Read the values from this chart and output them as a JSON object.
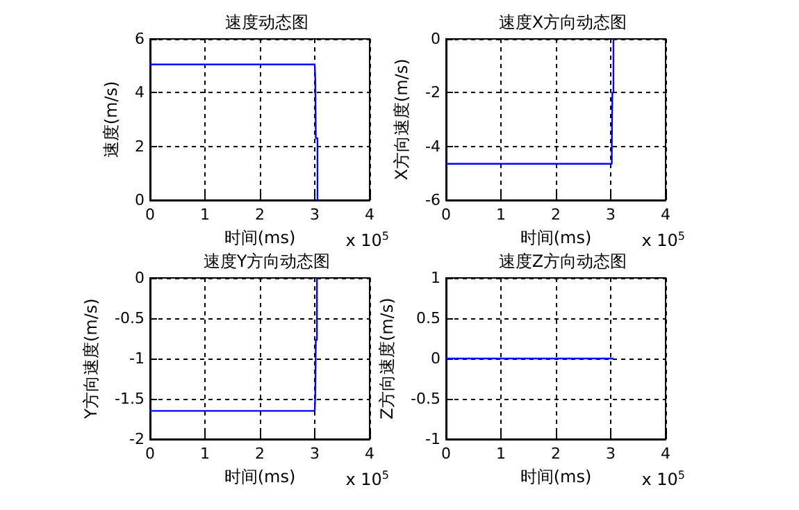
{
  "chart_data": [
    {
      "type": "line",
      "title": "速度动态图",
      "xlabel": "时间(ms)",
      "ylabel": "速度(m/s)",
      "annotations": [
        "x 10$^{5}$"
      ],
      "xlim": [
        0,
        4
      ],
      "xticks": [
        0,
        1,
        2,
        3,
        4
      ],
      "ylim": [
        0,
        6
      ],
      "yticks": [
        0,
        2,
        4,
        6
      ],
      "grid": true,
      "series": [
        {
          "color": "#0000ff",
          "x": [
            0,
            3,
            3.01,
            3.02,
            3.02,
            3.05,
            3.05,
            3.07
          ],
          "values": [
            5.05,
            5.05,
            4.5,
            4.5,
            2.3,
            2.3,
            0,
            0
          ]
        }
      ]
    },
    {
      "type": "line",
      "title": "速度X方向动态图",
      "xlabel": "时间(ms)",
      "ylabel": "X方向速度(m/s)",
      "annotations": [
        "x 10$^{5}$"
      ],
      "xlim": [
        0,
        4
      ],
      "xticks": [
        0,
        1,
        2,
        3,
        4
      ],
      "ylim": [
        -6,
        0
      ],
      "yticks": [
        -6,
        -4,
        -2,
        0
      ],
      "grid": true,
      "series": [
        {
          "color": "#0000ff",
          "x": [
            0,
            3,
            3.02,
            3.02,
            3.03,
            3.03,
            3.05,
            3.05
          ],
          "values": [
            -4.65,
            -4.65,
            -4.65,
            -4,
            -4,
            -2,
            -2,
            0
          ]
        }
      ]
    },
    {
      "type": "line",
      "title": "速度Y方向动态图",
      "xlabel": "时间(ms)",
      "ylabel": "Y方向速度(m/s)",
      "annotations": [
        "x 10$^{5}$"
      ],
      "xlim": [
        0,
        4
      ],
      "xticks": [
        0,
        1,
        2,
        3,
        4
      ],
      "ylim": [
        -2,
        0
      ],
      "yticks": [
        -2,
        -1.5,
        -1,
        -0.5,
        0
      ],
      "grid": true,
      "series": [
        {
          "color": "#0000ff",
          "x": [
            0,
            3,
            3.01,
            3.02,
            3.02,
            3.04,
            3.04,
            3.06
          ],
          "values": [
            -1.65,
            -1.65,
            -1.45,
            -1.45,
            -0.77,
            -0.77,
            0,
            0
          ]
        }
      ]
    },
    {
      "type": "line",
      "title": "速度Z方向动态图",
      "xlabel": "时间(ms)",
      "ylabel": "Z方向速度(m/s)",
      "annotations": [
        "x 10$^{5}$"
      ],
      "xlim": [
        0,
        4
      ],
      "xticks": [
        0,
        1,
        2,
        3,
        4
      ],
      "ylim": [
        -1,
        1
      ],
      "yticks": [
        -1,
        -0.5,
        0,
        0.5,
        1
      ],
      "grid": true,
      "series": [
        {
          "color": "#0000ff",
          "x": [
            0,
            3.05
          ],
          "values": [
            0,
            0
          ]
        }
      ]
    }
  ]
}
